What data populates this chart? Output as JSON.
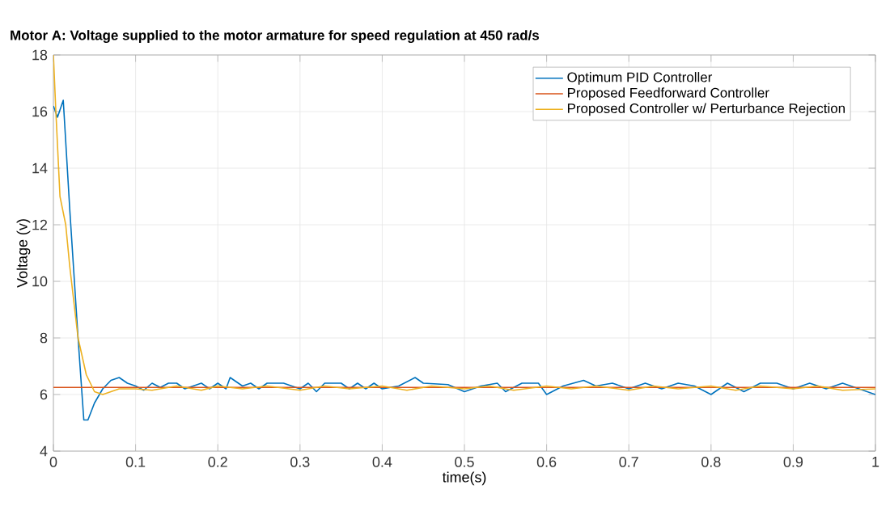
{
  "chart_data": {
    "type": "line",
    "title": "Motor A: Voltage supplied to the motor armature for speed regulation at 450 rad/s",
    "xlabel": "time(s)",
    "ylabel": "Voltage (v)",
    "xlim": [
      0,
      1
    ],
    "ylim": [
      4,
      18
    ],
    "xticks": [
      0,
      0.1,
      0.2,
      0.3,
      0.4,
      0.5,
      0.6,
      0.7,
      0.8,
      0.9,
      1
    ],
    "yticks": [
      4,
      6,
      8,
      10,
      12,
      14,
      16,
      18
    ],
    "grid": true,
    "legend": "top right",
    "line_style": "solid",
    "marker": "none",
    "series": [
      {
        "name": "Optimum PID Controller",
        "color": "#0072bd",
        "x": [
          0,
          0.005,
          0.012,
          0.02,
          0.03,
          0.037,
          0.042,
          0.05,
          0.06,
          0.07,
          0.08,
          0.09,
          0.1,
          0.11,
          0.12,
          0.13,
          0.14,
          0.15,
          0.16,
          0.17,
          0.18,
          0.19,
          0.2,
          0.21,
          0.215,
          0.23,
          0.24,
          0.25,
          0.26,
          0.27,
          0.28,
          0.29,
          0.3,
          0.31,
          0.32,
          0.33,
          0.35,
          0.36,
          0.37,
          0.38,
          0.39,
          0.4,
          0.42,
          0.44,
          0.45,
          0.48,
          0.5,
          0.52,
          0.54,
          0.55,
          0.57,
          0.59,
          0.6,
          0.62,
          0.645,
          0.66,
          0.68,
          0.7,
          0.72,
          0.74,
          0.76,
          0.78,
          0.8,
          0.82,
          0.84,
          0.86,
          0.88,
          0.9,
          0.92,
          0.94,
          0.96,
          0.98,
          1.0
        ],
        "values": [
          16.2,
          15.8,
          16.4,
          12.5,
          8,
          5.1,
          5.1,
          5.7,
          6.2,
          6.5,
          6.6,
          6.4,
          6.3,
          6.15,
          6.4,
          6.25,
          6.4,
          6.4,
          6.2,
          6.3,
          6.4,
          6.2,
          6.4,
          6.2,
          6.6,
          6.3,
          6.4,
          6.2,
          6.4,
          6.4,
          6.4,
          6.3,
          6.2,
          6.4,
          6.1,
          6.4,
          6.4,
          6.2,
          6.4,
          6.2,
          6.4,
          6.2,
          6.3,
          6.6,
          6.4,
          6.35,
          6.1,
          6.3,
          6.4,
          6.1,
          6.4,
          6.4,
          6.0,
          6.3,
          6.5,
          6.3,
          6.4,
          6.2,
          6.4,
          6.2,
          6.4,
          6.3,
          6.0,
          6.4,
          6.1,
          6.4,
          6.4,
          6.2,
          6.4,
          6.2,
          6.4,
          6.2,
          6.0
        ]
      },
      {
        "name": "Proposed Feedforward Controller",
        "color": "#d95319",
        "x": [
          0,
          1
        ],
        "values": [
          6.25,
          6.25
        ]
      },
      {
        "name": "Proposed Controller w/ Perturbance Rejection",
        "color": "#edb120",
        "x": [
          0,
          0.003,
          0.008,
          0.015,
          0.02,
          0.03,
          0.04,
          0.05,
          0.06,
          0.07,
          0.08,
          0.1,
          0.12,
          0.15,
          0.18,
          0.2,
          0.23,
          0.26,
          0.3,
          0.33,
          0.36,
          0.4,
          0.43,
          0.46,
          0.5,
          0.53,
          0.56,
          0.6,
          0.63,
          0.66,
          0.7,
          0.73,
          0.76,
          0.8,
          0.83,
          0.86,
          0.9,
          0.93,
          0.96,
          1.0
        ],
        "values": [
          18,
          16,
          13,
          12,
          10.5,
          8,
          6.7,
          6.1,
          6.0,
          6.1,
          6.2,
          6.2,
          6.15,
          6.3,
          6.15,
          6.3,
          6.2,
          6.3,
          6.15,
          6.3,
          6.2,
          6.3,
          6.15,
          6.3,
          6.2,
          6.3,
          6.15,
          6.3,
          6.2,
          6.3,
          6.15,
          6.3,
          6.2,
          6.3,
          6.15,
          6.3,
          6.2,
          6.3,
          6.15,
          6.2
        ]
      }
    ]
  }
}
